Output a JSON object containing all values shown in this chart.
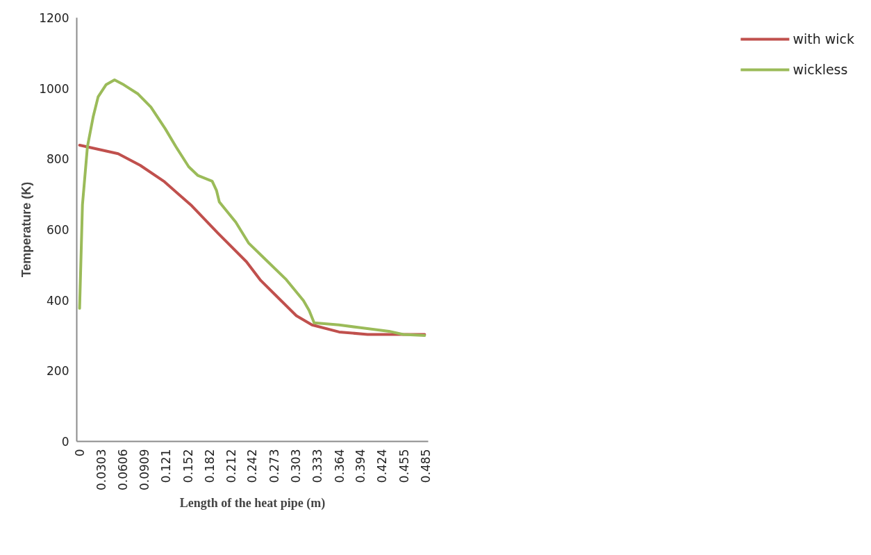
{
  "chart_data": {
    "type": "line",
    "xlabel": "Length of the heat pipe (m)",
    "ylabel": "Temperature (K)",
    "xlim": [
      -0.004,
      0.489
    ],
    "ylim": [
      0,
      1200
    ],
    "xticks": [
      0,
      0.0303,
      0.0606,
      0.0909,
      0.121,
      0.152,
      0.182,
      0.212,
      0.242,
      0.273,
      0.303,
      0.333,
      0.364,
      0.394,
      0.424,
      0.455,
      0.485
    ],
    "yticks": [
      0,
      200,
      400,
      600,
      800,
      1000,
      1200
    ],
    "grid": false,
    "legend": "right",
    "line_style": "solid",
    "marker": "none",
    "series": [
      {
        "name": "with wick",
        "color": "#c0504d",
        "x": [
          0,
          0.009,
          0.054,
          0.085,
          0.118,
          0.156,
          0.194,
          0.234,
          0.254,
          0.273,
          0.304,
          0.326,
          0.364,
          0.404,
          0.44,
          0.484
        ],
        "values": [
          839,
          835,
          815,
          782,
          737,
          670,
          590,
          509,
          456,
          418,
          356,
          330,
          310,
          303,
          303,
          303
        ]
      },
      {
        "name": "wickless",
        "color": "#9bbb59",
        "x": [
          0,
          0.004,
          0.011,
          0.019,
          0.026,
          0.037,
          0.049,
          0.062,
          0.082,
          0.1,
          0.12,
          0.135,
          0.153,
          0.166,
          0.186,
          0.192,
          0.196,
          0.219,
          0.237,
          0.264,
          0.29,
          0.314,
          0.322,
          0.329,
          0.364,
          0.394,
          0.434,
          0.454,
          0.484
        ],
        "values": [
          377,
          670,
          835,
          919,
          976,
          1010,
          1024,
          1010,
          984,
          947,
          886,
          835,
          778,
          753,
          737,
          711,
          678,
          621,
          562,
          509,
          458,
          399,
          371,
          336,
          330,
          322,
          312,
          303,
          300
        ]
      }
    ]
  }
}
